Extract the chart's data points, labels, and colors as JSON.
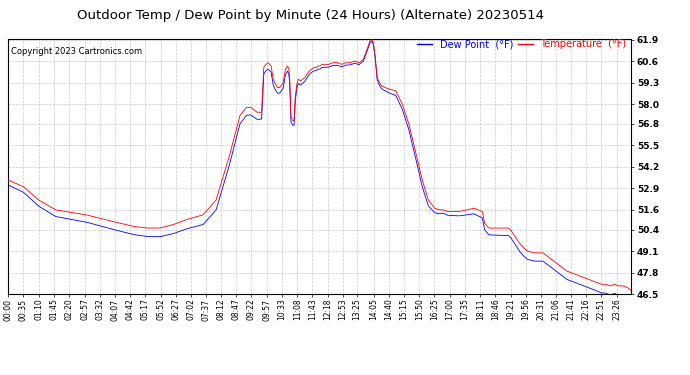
{
  "title": "Outdoor Temp / Dew Point by Minute (24 Hours) (Alternate) 20230514",
  "copyright": "Copyright 2023 Cartronics.com",
  "legend_dew": "Dew Point  (°F)",
  "legend_temp": "Temperature  (°F)",
  "temp_color": "red",
  "dew_color": "blue",
  "bg_color": "#ffffff",
  "plot_bg_color": "#ffffff",
  "grid_color": "#bbbbbb",
  "ylim_min": 46.5,
  "ylim_max": 61.9,
  "yticks": [
    46.5,
    47.8,
    49.1,
    50.4,
    51.6,
    52.9,
    54.2,
    55.5,
    56.8,
    58.0,
    59.3,
    60.6,
    61.9
  ],
  "title_fontsize": 9.5,
  "copyright_fontsize": 6,
  "legend_fontsize": 7,
  "tick_fontsize": 5.5,
  "line_width": 0.6
}
